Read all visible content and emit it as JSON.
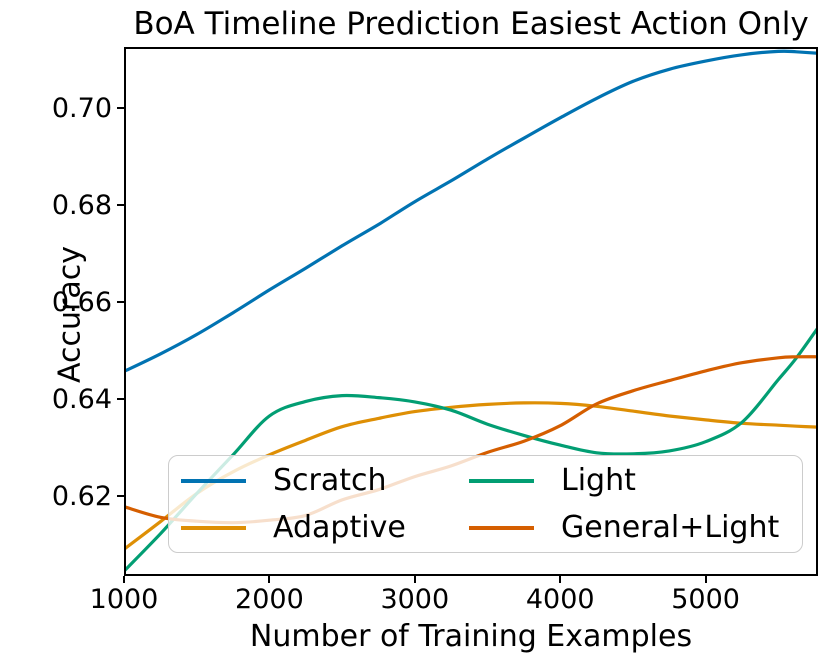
{
  "chart_data": {
    "type": "line",
    "title": "BoA Timeline Prediction Easiest Action Only",
    "xlabel": "Number of Training Examples",
    "ylabel": "Accuracy",
    "xlim": [
      1000,
      5773
    ],
    "ylim": [
      0.6035,
      0.7126
    ],
    "grid": false,
    "background": "#ffffff",
    "spine_color": "#000000",
    "xticks": {
      "values": [
        1000,
        2000,
        3000,
        4000,
        5000
      ],
      "labels": [
        "1000",
        "2000",
        "3000",
        "4000",
        "5000"
      ]
    },
    "yticks": {
      "values": [
        0.62,
        0.64,
        0.66,
        0.68,
        0.7
      ],
      "labels": [
        "0.62",
        "0.64",
        "0.66",
        "0.68",
        "0.70"
      ]
    },
    "x": [
      1000,
      1250,
      1500,
      1750,
      2000,
      2250,
      2500,
      2750,
      3000,
      3250,
      3500,
      3750,
      4000,
      4250,
      4500,
      4750,
      5000,
      5250,
      5500,
      5625,
      5775
    ],
    "series": [
      {
        "name": "Scratch",
        "color": "#0173b2",
        "values": [
          0.6457,
          0.6493,
          0.6533,
          0.6578,
          0.6625,
          0.667,
          0.6716,
          0.676,
          0.6807,
          0.685,
          0.6895,
          0.6938,
          0.698,
          0.702,
          0.7055,
          0.708,
          0.7097,
          0.711,
          0.7117,
          0.7116,
          0.7113
        ]
      },
      {
        "name": "Adaptive",
        "color": "#de8f05",
        "values": [
          0.609,
          0.6147,
          0.6205,
          0.625,
          0.6285,
          0.6315,
          0.6343,
          0.636,
          0.6374,
          0.6383,
          0.6389,
          0.6392,
          0.6391,
          0.6385,
          0.6375,
          0.6365,
          0.6357,
          0.635,
          0.6346,
          0.6344,
          0.6342
        ]
      },
      {
        "name": "Light",
        "color": "#029e73",
        "values": [
          0.6045,
          0.6122,
          0.6205,
          0.6285,
          0.6365,
          0.6395,
          0.6407,
          0.6403,
          0.6394,
          0.6377,
          0.6348,
          0.6325,
          0.6305,
          0.6289,
          0.6287,
          0.6293,
          0.6312,
          0.6352,
          0.644,
          0.6485,
          0.6548
        ]
      },
      {
        "name": "General+Light",
        "color": "#d55e00",
        "values": [
          0.6178,
          0.6156,
          0.6148,
          0.6145,
          0.615,
          0.616,
          0.6192,
          0.6213,
          0.624,
          0.6262,
          0.629,
          0.6313,
          0.6345,
          0.639,
          0.6417,
          0.6438,
          0.6458,
          0.6475,
          0.6485,
          0.6487,
          0.6487
        ]
      }
    ],
    "legend": {
      "position": "lower-center inside plot",
      "columns": 2,
      "items_visual_order": [
        "Scratch",
        "Light",
        "Adaptive",
        "General+Light"
      ]
    }
  }
}
